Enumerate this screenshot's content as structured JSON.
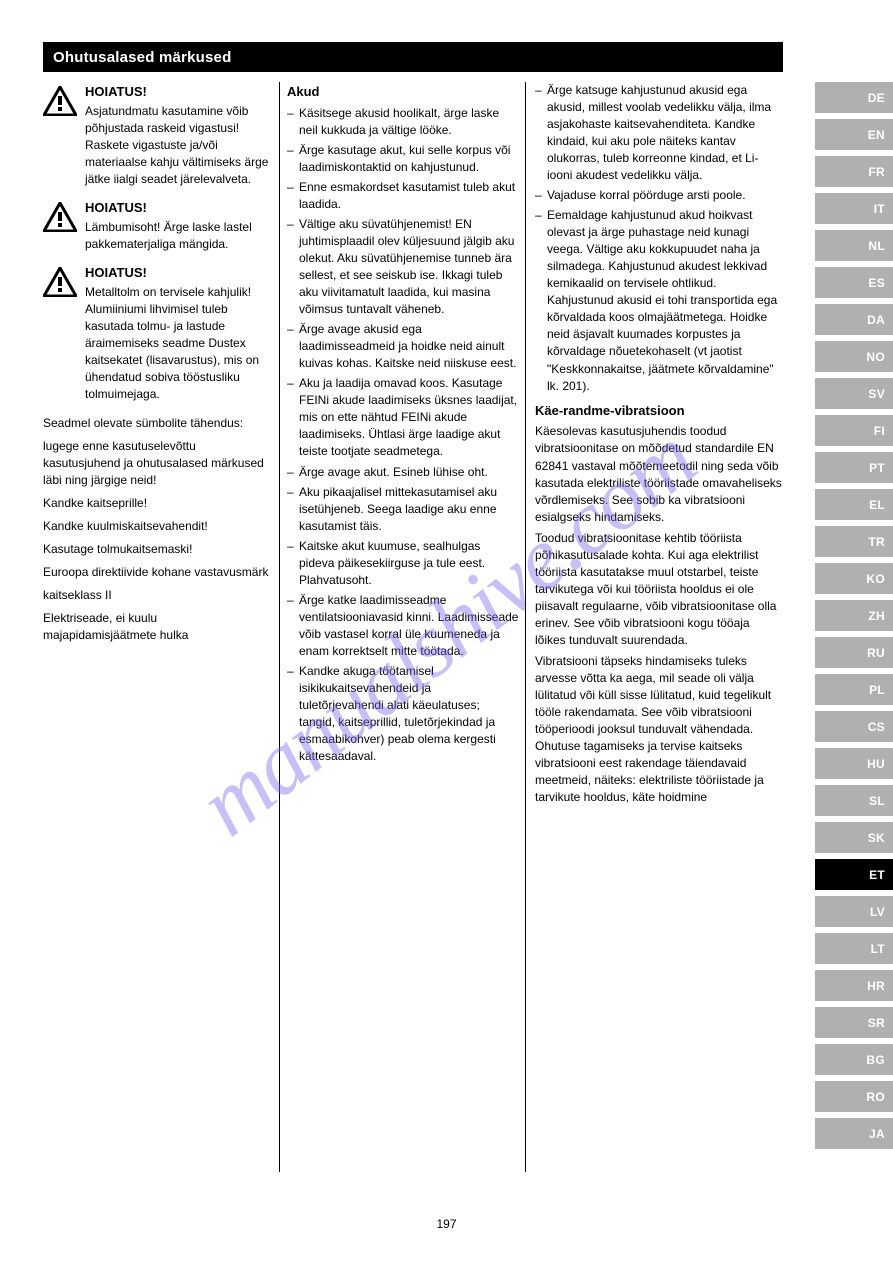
{
  "title_bar": "Ohutusalased märkused",
  "watermark": "manualshive.com",
  "page_number": "197",
  "colors": {
    "page_bg": "#ffffff",
    "title_bg": "#000000",
    "title_fg": "#ffffff",
    "text": "#000000",
    "lang_tab_bg": "#b0b0b0",
    "lang_tab_fg": "#ffffff",
    "lang_tab_current_bg": "#000000",
    "watermark_color": "rgba(118,104,236,0.42)"
  },
  "languages": [
    {
      "code": "DE"
    },
    {
      "code": "EN"
    },
    {
      "code": "FR"
    },
    {
      "code": "IT"
    },
    {
      "code": "NL"
    },
    {
      "code": "ES"
    },
    {
      "code": "DA"
    },
    {
      "code": "NO"
    },
    {
      "code": "SV"
    },
    {
      "code": "FI"
    },
    {
      "code": "PT"
    },
    {
      "code": "EL"
    },
    {
      "code": "TR"
    },
    {
      "code": "KO"
    },
    {
      "code": "ZH"
    },
    {
      "code": "RU"
    },
    {
      "code": "PL"
    },
    {
      "code": "CS"
    },
    {
      "code": "HU"
    },
    {
      "code": "SL"
    },
    {
      "code": "SK"
    },
    {
      "code": "ET",
      "current": true
    },
    {
      "code": "LV"
    },
    {
      "code": "LT"
    },
    {
      "code": "HR"
    },
    {
      "code": "SR"
    },
    {
      "code": "BG"
    },
    {
      "code": "RO"
    },
    {
      "code": "JA"
    }
  ],
  "col1": {
    "b1": {
      "heading": "HOIATUS!",
      "p1": "Asjatundmatu kasutamine võib põhjustada raskeid vigastusi! Raskete vigastuste ja/või materiaalse kahju vältimiseks ärge jätke iialgi seadet järelevalveta."
    },
    "b2": {
      "heading": "HOIATUS!",
      "p1": "Lämbumisoht! Ärge laske lastel pakkematerjaliga mängida."
    },
    "b3": {
      "heading": "HOIATUS!",
      "p1": "Metalltolm on tervisele kahjulik! Alumiiniumi lihvimisel tuleb kasutada tolmu- ja lastude äraimemiseks seadme Dustex kaitsekatet (lisavarustus), mis on ühendatud sobiva tööstusliku tolmuimejaga."
    },
    "p_sym": "Seadmel olevate sümbolite tähendus:",
    "sym": [
      "lugege enne kasutuselevõttu kasutusjuhend ja ohutusalased märkused läbi ning järgige neid!",
      "Kandke kaitseprille!",
      "Kandke kuulmiskaitsevahendit!",
      "Kasutage tolmukaitsemaski!",
      "Euroopa direktiivide kohane vastavusmärk",
      "kaitseklass II",
      "Elektriseade, ei kuulu majapidamisjäätmete hulka"
    ]
  },
  "col2": {
    "h_accu": "Akud",
    "accu_items": [
      "Käsitsege akusid hoolikalt, ärge laske neil kukkuda ja vältige lööke.",
      "Ärge kasutage akut, kui selle korpus või laadimiskontaktid on kahjustunud.",
      "Enne esmakordset kasutamist tuleb akut laadida.",
      "Vältige aku süvatühjenemist! EN juhtimisplaadil olev küljesuund jälgib aku olekut. Aku süvatühjenemise tunneb ära sellest, et see seiskub ise. Ikkagi tuleb aku viivitamatult laadida, kui masina võimsus tuntavalt väheneb.",
      "Ärge avage akusid ega laadimisseadmeid ja hoidke neid ainult kuivas kohas. Kaitske neid niiskuse eest.",
      "Aku ja laadija omavad koos. Kasutage FEINi akude laadimiseks üksnes laadijat, mis on ette nähtud FEINi akude laadimiseks. Ühtlasi ärge laadige akut teiste tootjate seadmetega.",
      "Ärge avage akut. Esineb lühise oht.",
      "Aku pikaajalisel mittekasutamisel aku isetühjeneb. Seega laadige aku enne kasutamist täis.",
      "Kaitske akut kuumuse, sealhulgas pideva päikesekiirguse ja tule eest. Plahvatusoht.",
      "Ärge katke laadimisseadme ventilatsiooniavasid kinni. Laadimisseade võib vastasel korral üle kuumeneda ja enam korrektselt mitte töötada.",
      "Kandke akuga töötamisel isikikukaitsevahendeid ja tuletõrjevahendi alati käeulatuses; tangid, kaitseprillid, tuletõrjekindad ja esmaabikohver) peab olema kergesti kättesaadaval."
    ]
  },
  "col3": {
    "c3_items_top": [
      "Ärge katsuge kahjustunud akusid ega akusid, millest voolab vedelikku välja, ilma asjakohaste kaitsevahenditeta. Kandke kindaid, kui aku pole näiteks kantav olukorras, tuleb korreonne kindad, et Li-iooni akudest vedelikku välja.",
      "Vajaduse korral pöörduge arsti poole.",
      "Eemaldage kahjustunud akud hoikvast olevast ja ärge puhastage neid kunagi veega. Vältige aku kokkupuudet naha ja silmadega. Kahjustunud akudest lekkivad kemikaalid on tervisele ohtlikud. Kahjustunud akusid ei tohi transportida ega kõrvaldada koos olmajäätmetega. Hoidke neid äsjavalt kuumades korpustes ja kõrvaldage nõuetekohaselt (vt jaotist \"Keskkonnakaitse, jäätmete kõrvaldamine\" lk. 201)."
    ],
    "h_vib": "Käe-randme-vibratsioon",
    "vib_p1": "Käesolevas kasutusjuhendis toodud vibratsioonitase on mõõdetud standardile EN 62841 vastaval mõõtemeetodil ning seda võib kasutada elektriliste tööriistade omavaheliseks võrdlemiseks. See sobib ka vibratsiooni esialgseks hindamiseks.",
    "vib_p2": "Toodud vibratsioonitase kehtib tööriista põhikasutusalade kohta. Kui aga elektrilist tööriista kasutatakse muul otstarbel, teiste tarvikutega või kui tööriista hooldus ei ole piisavalt regulaarne, võib vibratsioonitase olla erinev. See võib vibratsiooni kogu tööaja lõikes tunduvalt suurendada.",
    "vib_p3": "Vibratsiooni täpseks hindamiseks tuleks arvesse võtta ka aega, mil seade oli välja lülitatud või küll sisse lülitatud, kuid tegelikult tööle rakendamata. See võib vibratsiooni tööperioodi jooksul tunduvalt vähendada. Ohutuse tagamiseks ja tervise kaitseks vibratsiooni eest rakendage täiendavaid meetmeid, näiteks: elektriliste tööriistade ja tarvikute hooldus, käte hoidmine"
  }
}
